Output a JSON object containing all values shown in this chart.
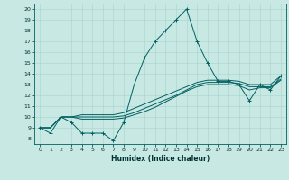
{
  "title": "",
  "xlabel": "Humidex (Indice chaleur)",
  "ylabel": "",
  "bg_color": "#c8e8e4",
  "line_color": "#006060",
  "grid_color": "#a8d4d0",
  "xlim": [
    -0.5,
    23.5
  ],
  "ylim": [
    7.5,
    20.5
  ],
  "xticks": [
    0,
    1,
    2,
    3,
    4,
    5,
    6,
    7,
    8,
    9,
    10,
    11,
    12,
    13,
    14,
    15,
    16,
    17,
    18,
    19,
    20,
    21,
    22,
    23
  ],
  "yticks": [
    8,
    9,
    10,
    11,
    12,
    13,
    14,
    15,
    16,
    17,
    18,
    19,
    20
  ],
  "line1_x": [
    0,
    1,
    2,
    3,
    4,
    5,
    6,
    7,
    8,
    9,
    10,
    11,
    12,
    13,
    14,
    15,
    16,
    17,
    18,
    19,
    20,
    21,
    22,
    23
  ],
  "line1_y": [
    9.0,
    8.5,
    10.0,
    9.5,
    8.5,
    8.5,
    8.5,
    7.8,
    9.5,
    13.0,
    15.5,
    17.0,
    18.0,
    19.0,
    20.0,
    17.0,
    15.0,
    13.3,
    13.3,
    13.0,
    11.5,
    13.0,
    12.5,
    13.8
  ],
  "line2_x": [
    0,
    1,
    2,
    3,
    4,
    5,
    6,
    7,
    8,
    9,
    10,
    11,
    12,
    13,
    14,
    15,
    16,
    17,
    18,
    19,
    20,
    21,
    22,
    23
  ],
  "line2_y": [
    9.0,
    9.0,
    10.0,
    10.0,
    10.2,
    10.2,
    10.2,
    10.2,
    10.4,
    10.8,
    11.2,
    11.6,
    12.0,
    12.4,
    12.8,
    13.2,
    13.4,
    13.4,
    13.4,
    13.3,
    13.0,
    13.0,
    13.0,
    13.8
  ],
  "line3_x": [
    0,
    1,
    2,
    3,
    4,
    5,
    6,
    7,
    8,
    9,
    10,
    11,
    12,
    13,
    14,
    15,
    16,
    17,
    18,
    19,
    20,
    21,
    22,
    23
  ],
  "line3_y": [
    9.0,
    9.0,
    10.0,
    10.0,
    10.0,
    10.0,
    10.0,
    10.0,
    10.1,
    10.4,
    10.8,
    11.2,
    11.6,
    12.0,
    12.5,
    13.0,
    13.2,
    13.2,
    13.2,
    13.1,
    12.8,
    12.8,
    12.8,
    13.5
  ],
  "line4_x": [
    0,
    1,
    2,
    3,
    4,
    5,
    6,
    7,
    8,
    9,
    10,
    11,
    12,
    13,
    14,
    15,
    16,
    17,
    18,
    19,
    20,
    21,
    22,
    23
  ],
  "line4_y": [
    9.0,
    9.0,
    10.0,
    10.0,
    9.8,
    9.8,
    9.8,
    9.8,
    9.9,
    10.2,
    10.5,
    10.9,
    11.4,
    11.9,
    12.4,
    12.8,
    13.0,
    13.0,
    13.0,
    12.9,
    12.5,
    12.7,
    12.7,
    13.4
  ]
}
